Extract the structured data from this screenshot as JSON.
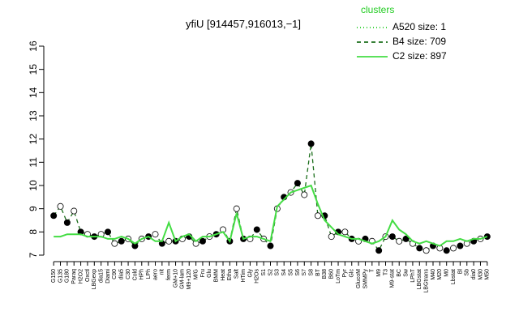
{
  "chart_data": {
    "type": "line",
    "title": "yfiU [914457,916013,−1]",
    "legend": {
      "title": "clusters",
      "position": "top-right",
      "color": "#22cc22",
      "entries": [
        {
          "label": "A520 size: 1",
          "style": "dotted",
          "color": "#22cc22"
        },
        {
          "label": "B4 size: 709",
          "style": "dashed",
          "color": "#1b6e1b"
        },
        {
          "label": "C2 size: 897",
          "style": "solid",
          "color": "#44dd44"
        }
      ]
    },
    "categories": [
      "G150",
      "G135",
      "G180",
      "Paraq",
      "H2O2",
      "Oxctl",
      "LBGexp",
      "dia15",
      "Diami",
      "C90",
      "dia5",
      "C30",
      "Cold",
      "HPh",
      "LPh",
      "aero",
      "nit",
      "ferm",
      "GM+10",
      "GM-lam",
      "M9+120",
      "M/G",
      "Fru",
      "Glu",
      "BMM",
      "Heat",
      "Etha",
      "Salt",
      "HTim",
      "Gly",
      "H2Os",
      "S1",
      "S2",
      "S3",
      "S4",
      "S5",
      "S6",
      "S7",
      "S8",
      "BT",
      "B38",
      "B60",
      "LoTm",
      "Pyr",
      "Glc",
      "GlucoM",
      "SMMPy",
      "T",
      "M9",
      "T3",
      "M9-stat",
      "BC",
      "Sw",
      "LPhT",
      "LBGstat",
      "LBGtrans",
      "M40",
      "M20",
      "M0",
      "Lbstat",
      "Bl",
      "Sb",
      "dia0",
      "M30",
      "M50"
    ],
    "series": [
      {
        "legend": 1,
        "style": "dashed",
        "markers": true,
        "color": "#1b6e1b",
        "values": [
          8.7,
          9.1,
          8.4,
          8.9,
          8.0,
          7.9,
          7.8,
          7.9,
          8.0,
          7.5,
          7.6,
          7.7,
          7.4,
          7.7,
          7.8,
          7.9,
          7.5,
          7.6,
          7.6,
          7.7,
          7.8,
          7.5,
          7.6,
          7.8,
          7.9,
          8.1,
          7.6,
          9.0,
          7.7,
          7.7,
          8.1,
          7.7,
          7.4,
          9.0,
          9.5,
          9.7,
          10.1,
          9.6,
          11.8,
          8.7,
          8.7,
          7.8,
          8.0,
          8.0,
          7.7,
          7.6,
          7.7,
          7.6,
          7.2,
          7.8,
          7.8,
          7.6,
          7.7,
          7.5,
          7.3,
          7.2,
          7.4,
          7.3,
          7.2,
          7.3,
          7.4,
          7.5,
          7.6,
          7.7,
          7.8
        ]
      },
      {
        "legend": 2,
        "style": "solid",
        "markers": false,
        "color": "#44dd44",
        "values": [
          7.8,
          7.8,
          7.9,
          7.9,
          7.9,
          7.8,
          7.8,
          7.8,
          7.7,
          7.7,
          7.8,
          7.7,
          7.5,
          7.7,
          7.8,
          7.6,
          7.6,
          8.4,
          7.6,
          7.8,
          7.9,
          7.6,
          7.8,
          7.8,
          7.9,
          8.0,
          7.6,
          8.8,
          7.7,
          7.8,
          7.8,
          7.7,
          7.6,
          9.1,
          9.4,
          9.7,
          9.8,
          9.9,
          10.0,
          9.2,
          8.5,
          8.2,
          7.9,
          7.8,
          7.7,
          7.7,
          7.6,
          7.5,
          7.6,
          7.8,
          8.5,
          8.1,
          7.9,
          7.6,
          7.5,
          7.6,
          7.5,
          7.4,
          7.6,
          7.6,
          7.7,
          7.6,
          7.7,
          7.7,
          7.8
        ]
      }
    ],
    "ylim": [
      7,
      16
    ],
    "yticks": [
      7,
      8,
      9,
      10,
      11,
      12,
      13,
      14,
      15,
      16
    ]
  }
}
